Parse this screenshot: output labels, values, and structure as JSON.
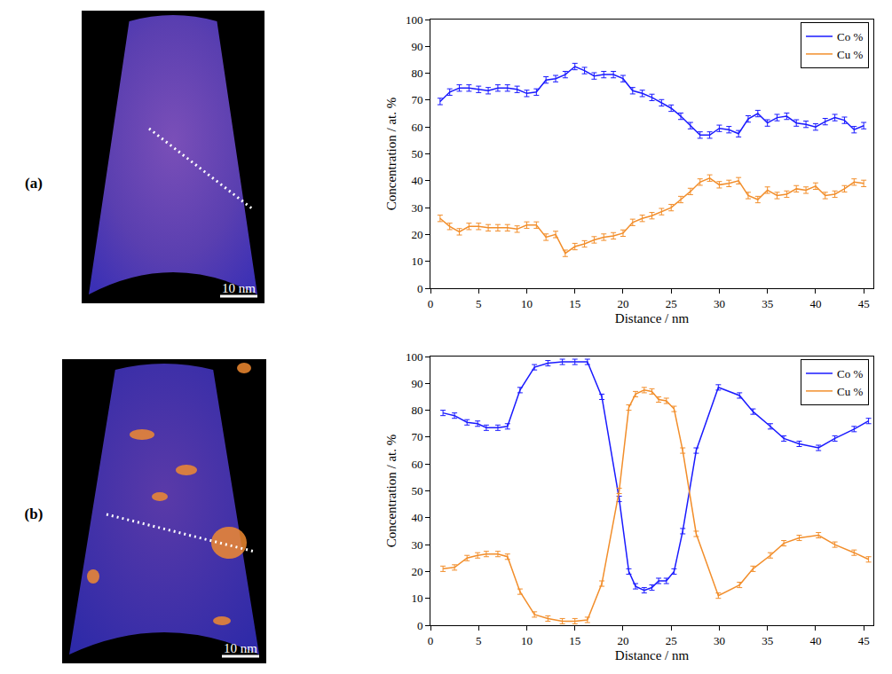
{
  "panel_labels": [
    "(a)",
    "(b)"
  ],
  "scale_bar_label": "10 nm",
  "chart_data": [
    {
      "type": "line",
      "x_label": "Distance / nm",
      "y_label": "Concentration / at. %",
      "xlim": [
        0,
        46
      ],
      "xticks": [
        0,
        5,
        10,
        15,
        20,
        25,
        30,
        35,
        40,
        45
      ],
      "ylim": [
        0,
        100
      ],
      "yticks": [
        0,
        10,
        20,
        30,
        40,
        50,
        60,
        70,
        80,
        90,
        100
      ],
      "grid": false,
      "legend": "upper right",
      "x": [
        1,
        2,
        3,
        4,
        5,
        6,
        7,
        8,
        9,
        10,
        11,
        12,
        13,
        14,
        15,
        16,
        17,
        18,
        19,
        20,
        21,
        22,
        23,
        24,
        25,
        26,
        27,
        28,
        29,
        30,
        31,
        32,
        33,
        34,
        35,
        36,
        37,
        38,
        39,
        40,
        41,
        42,
        43,
        44,
        45
      ],
      "series": [
        {
          "name": "Co %",
          "color": "#1a1aff",
          "values": [
            69.5,
            73,
            74.5,
            74.5,
            74,
            73.5,
            74.5,
            74.5,
            74,
            72.5,
            73,
            77.5,
            78,
            79.5,
            82.5,
            81,
            79,
            79.5,
            79.5,
            78,
            73.5,
            72.5,
            71,
            69,
            67,
            64,
            60.5,
            57,
            57,
            59.5,
            59,
            57.5,
            63,
            65,
            61.5,
            63.5,
            64,
            61.5,
            61,
            60,
            62,
            63.5,
            62.5,
            59,
            60.5
          ],
          "errors": [
            1.2,
            1.2,
            1.2,
            1.2,
            1.2,
            1.2,
            1.2,
            1.2,
            1.2,
            1.2,
            1.2,
            1.2,
            1.2,
            1.2,
            1.2,
            1.2,
            1.2,
            1.2,
            1.2,
            1.2,
            1.2,
            1.2,
            1.2,
            1.2,
            1.2,
            1.2,
            1.2,
            1.2,
            1.2,
            1.2,
            1.2,
            1.2,
            1.2,
            1.2,
            1.2,
            1.2,
            1.2,
            1.2,
            1.2,
            1.2,
            1.2,
            1.2,
            1.2,
            1.2,
            1.2
          ]
        },
        {
          "name": "Cu %",
          "color": "#f28e2b",
          "values": [
            26,
            23,
            21,
            23,
            23,
            22.5,
            22.5,
            22.5,
            22,
            23.5,
            23.5,
            19,
            20,
            13,
            15.5,
            16.5,
            18,
            19,
            19.5,
            20.5,
            24.5,
            26,
            27,
            28.5,
            30,
            33,
            36,
            39.5,
            41,
            38.5,
            39,
            40,
            34.5,
            33,
            36.5,
            34.5,
            35,
            37,
            36.5,
            38,
            34.5,
            35,
            37,
            39.5,
            39
          ],
          "errors": [
            1.2,
            1.2,
            1.2,
            1.2,
            1.2,
            1.2,
            1.2,
            1.2,
            1.2,
            1.2,
            1.2,
            1.2,
            1.2,
            1.2,
            1.2,
            1.2,
            1.2,
            1.2,
            1.2,
            1.2,
            1.2,
            1.2,
            1.2,
            1.2,
            1.2,
            1.2,
            1.2,
            1.2,
            1.2,
            1.2,
            1.2,
            1.2,
            1.2,
            1.2,
            1.2,
            1.2,
            1.2,
            1.2,
            1.2,
            1.2,
            1.2,
            1.2,
            1.2,
            1.2,
            1.2
          ]
        }
      ]
    },
    {
      "type": "line",
      "x_label": "Distance / nm",
      "y_label": "Concentration / at. %",
      "xlim": [
        0,
        46
      ],
      "xticks": [
        0,
        5,
        10,
        15,
        20,
        25,
        30,
        35,
        40,
        45
      ],
      "ylim": [
        0,
        100
      ],
      "yticks": [
        0,
        10,
        20,
        30,
        40,
        50,
        60,
        70,
        80,
        90,
        100
      ],
      "grid": false,
      "legend": "upper right",
      "x": [
        1.3,
        2.5,
        3.8,
        4.9,
        5.8,
        7,
        8,
        9.3,
        10.8,
        12.2,
        13.7,
        15,
        16.3,
        17.8,
        19.6,
        20.6,
        21.3,
        22.2,
        23,
        23.7,
        24.5,
        25.3,
        26.2,
        27.6,
        29.9,
        32.1,
        33.5,
        35.3,
        36.7,
        38.3,
        40.3,
        42,
        44,
        45.5
      ],
      "series": [
        {
          "name": "Co %",
          "color": "#1a1aff",
          "values": [
            79,
            78,
            75.5,
            75,
            73.5,
            73.5,
            74,
            87.5,
            96,
            97.5,
            98,
            98,
            98,
            85,
            47,
            20,
            14.5,
            13,
            14,
            16.5,
            16.5,
            20,
            35,
            65,
            88.5,
            85.5,
            79.5,
            74,
            69.5,
            67.5,
            66,
            69.5,
            73,
            76
          ],
          "errors": [
            1,
            1,
            1,
            1,
            1,
            1,
            1,
            1,
            1,
            1,
            1,
            1,
            1,
            1,
            1,
            1,
            1,
            1,
            1,
            1,
            1,
            1,
            1,
            1,
            1,
            1,
            1,
            1,
            1,
            1,
            1,
            1,
            1,
            1
          ]
        },
        {
          "name": "Cu %",
          "color": "#f28e2b",
          "values": [
            21,
            21.5,
            25,
            26,
            26.5,
            26.5,
            25.5,
            12.5,
            4,
            2.5,
            1.5,
            1.5,
            2,
            15.5,
            50,
            81,
            86,
            87.5,
            87,
            84,
            83.5,
            80.5,
            65,
            34,
            11,
            15,
            21,
            26,
            30.5,
            32.5,
            33.5,
            30,
            27,
            24.5
          ],
          "errors": [
            1,
            1,
            1,
            1,
            1,
            1,
            1,
            1,
            1,
            1,
            1,
            1,
            1,
            1,
            1,
            1,
            1,
            1,
            1,
            1,
            1,
            1,
            1,
            1,
            1,
            1,
            1,
            1,
            1,
            1,
            1,
            1,
            1,
            1
          ]
        }
      ]
    }
  ]
}
